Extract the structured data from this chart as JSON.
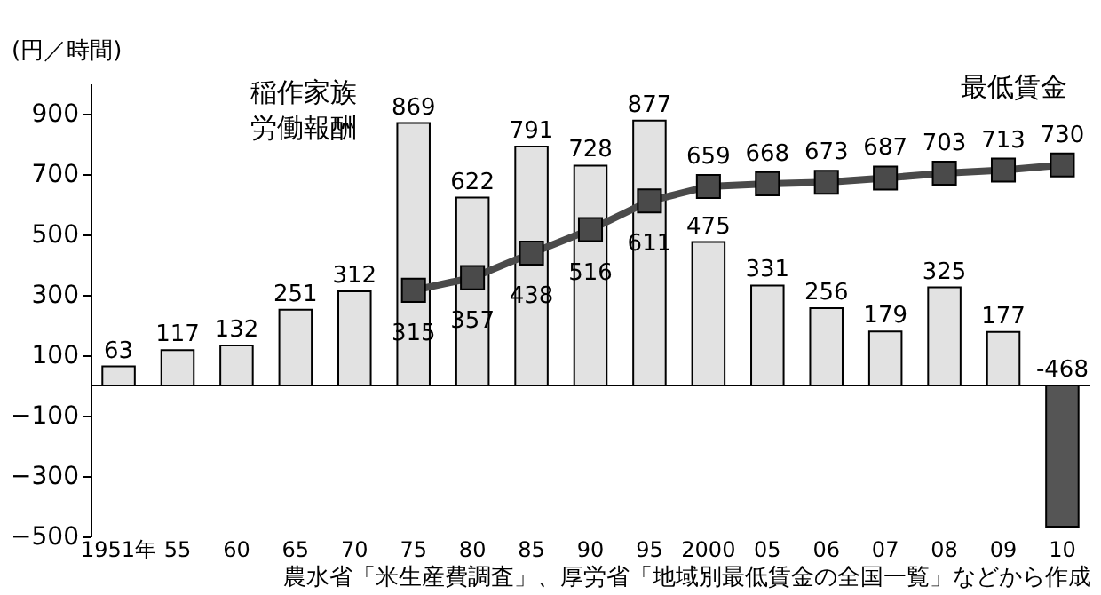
{
  "chart_data": {
    "type": "bar",
    "ylabel": "(円／時間)",
    "categories": [
      "1951年",
      "55",
      "60",
      "65",
      "70",
      "75",
      "80",
      "85",
      "90",
      "95",
      "2000",
      "05",
      "06",
      "07",
      "08",
      "09",
      "10"
    ],
    "series": [
      {
        "name": "稲作家族労働報酬",
        "colors": [
          "#e2e2e2",
          "#e2e2e2",
          "#e2e2e2",
          "#e2e2e2",
          "#e2e2e2",
          "#e2e2e2",
          "#e2e2e2",
          "#e2e2e2",
          "#e2e2e2",
          "#e2e2e2",
          "#e2e2e2",
          "#e2e2e2",
          "#e2e2e2",
          "#e2e2e2",
          "#e2e2e2",
          "#e2e2e2",
          "#555555"
        ],
        "values": [
          63,
          117,
          132,
          251,
          312,
          869,
          622,
          791,
          728,
          877,
          475,
          331,
          256,
          179,
          325,
          177,
          -468
        ]
      },
      {
        "name": "最低賃金",
        "type": "line",
        "color": "#4a4a4a",
        "values": [
          null,
          null,
          null,
          null,
          null,
          315,
          357,
          438,
          516,
          611,
          659,
          668,
          673,
          687,
          703,
          713,
          730
        ]
      }
    ],
    "ylim": [
      -500,
      1000
    ],
    "yticks": [
      -500,
      -300,
      -100,
      100,
      300,
      500,
      700,
      900
    ],
    "data_labels": true,
    "marker": "square",
    "grid": false,
    "legend": false,
    "annotations": [
      "農水省「米生産費調査」、厚労省「地域別最低賃金の全国一覧」などから作成"
    ]
  }
}
